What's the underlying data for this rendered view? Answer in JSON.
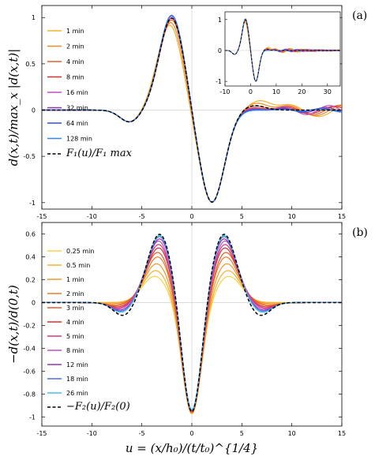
{
  "panel_labels": [
    "(a)",
    "(b)"
  ],
  "xlabel": "u = (x/h₀)/(t/t₀)^{1/4}",
  "chart_data": [
    {
      "type": "line",
      "panel": "(a)",
      "ylabel": "d(x,t)/max_x |d(x,t)|",
      "xlim": [
        -15,
        15
      ],
      "ylim": [
        -1.07,
        1.13
      ],
      "xticks": [
        -15,
        -10,
        -5,
        0,
        5,
        10,
        15
      ],
      "yticks": [
        -1,
        -0.5,
        0,
        0.5,
        1
      ],
      "ytick_labels": [
        "-1",
        "-0.5",
        "0",
        "0.5",
        "1"
      ],
      "legend_position": "top-left",
      "series": [
        {
          "name": "1 min",
          "color": "#f5b031",
          "peak": [
            -2.2,
            0.92
          ],
          "trough": [
            2.0,
            -1.0
          ],
          "side_lobe": [
            6.9,
            0.11
          ],
          "wiggle": {
            "amp": 0.07,
            "period": 6.2
          }
        },
        {
          "name": "2 min",
          "color": "#ef8a26",
          "peak": [
            -2.1,
            0.95
          ],
          "trough": [
            2.0,
            -1.0
          ],
          "side_lobe": [
            6.6,
            0.08
          ],
          "wiggle": {
            "amp": 0.06,
            "period": 5.8
          }
        },
        {
          "name": "4 min",
          "color": "#e4602c",
          "peak": [
            -2.0,
            0.98
          ],
          "trough": [
            2.0,
            -1.0
          ],
          "side_lobe": [
            6.4,
            0.05
          ],
          "wiggle": {
            "amp": 0.05,
            "period": 5.4
          }
        },
        {
          "name": "8 min",
          "color": "#d8302e",
          "peak": [
            -2.0,
            1.0
          ],
          "trough": [
            2.0,
            -1.0
          ],
          "side_lobe": [
            6.3,
            0.03
          ],
          "wiggle": {
            "amp": 0.04,
            "period": 5.0
          }
        },
        {
          "name": "16 min",
          "color": "#c04fc2",
          "peak": [
            -2.0,
            1.02
          ],
          "trough": [
            2.0,
            -1.0
          ],
          "side_lobe": [
            6.2,
            0.02
          ],
          "wiggle": {
            "amp": 0.05,
            "period": 4.6
          }
        },
        {
          "name": "32 min",
          "color": "#8a38b5",
          "peak": [
            -2.0,
            1.03
          ],
          "trough": [
            2.0,
            -1.0
          ],
          "side_lobe": [
            6.2,
            0.01
          ],
          "wiggle": {
            "amp": 0.03,
            "period": 4.3
          }
        },
        {
          "name": "64 min",
          "color": "#3a4ad9",
          "peak": [
            -2.0,
            1.03
          ],
          "trough": [
            2.0,
            -1.0
          ],
          "side_lobe": [
            6.1,
            0.01
          ],
          "wiggle": {
            "amp": 0.02,
            "period": 4.0
          }
        },
        {
          "name": "128 min",
          "color": "#2f8de8",
          "peak": [
            -2.0,
            1.03
          ],
          "trough": [
            2.0,
            -1.0
          ],
          "side_lobe": [
            6.1,
            0.0
          ],
          "wiggle": {
            "amp": 0.01,
            "period": 3.8
          }
        },
        {
          "name": "F₁(u)/F₁ max",
          "color": "#000000",
          "dashed": true,
          "peak": [
            -2.0,
            1.0
          ],
          "trough": [
            2.0,
            -1.0
          ],
          "side_lobe": [
            6.2,
            0.05
          ],
          "wiggle": {
            "amp": 0.0,
            "period": 4.0
          }
        }
      ],
      "inset": {
        "xlim": [
          -10,
          35
        ],
        "ylim": [
          -1.15,
          1.25
        ],
        "xticks": [
          -10,
          0,
          10,
          20,
          30
        ],
        "yticks": [
          -1,
          0,
          1
        ],
        "ytick_labels": [
          "-1",
          "0",
          "1"
        ]
      }
    },
    {
      "type": "line",
      "panel": "(b)",
      "ylabel": "−d(x,t)/d(0,t)",
      "xlim": [
        -15,
        15
      ],
      "ylim": [
        -1.08,
        0.7
      ],
      "xticks": [
        -15,
        -10,
        -5,
        0,
        5,
        10,
        15
      ],
      "yticks": [
        -1,
        -0.8,
        -0.6,
        -0.4,
        -0.2,
        0,
        0.2,
        0.4,
        0.6
      ],
      "ytick_labels": [
        "-1",
        "-0.8",
        "-0.6",
        "-0.4",
        "-0.2",
        "0",
        "0.2",
        "0.4",
        "0.6"
      ],
      "legend_position": "left",
      "series": [
        {
          "name": "0.25 min",
          "color": "#f9d247",
          "peak": [
            3.7,
            0.23
          ],
          "trough": [
            0,
            -0.98
          ],
          "side_lobe": [
            8.5,
            0.0
          ]
        },
        {
          "name": "0.5 min",
          "color": "#f5b031",
          "peak": [
            3.6,
            0.28
          ],
          "trough": [
            0,
            -0.98
          ],
          "side_lobe": [
            8.2,
            0.0
          ]
        },
        {
          "name": "1 min",
          "color": "#f09a2a",
          "peak": [
            3.5,
            0.34
          ],
          "trough": [
            0,
            -0.98
          ],
          "side_lobe": [
            8.0,
            -0.01
          ]
        },
        {
          "name": "2 min",
          "color": "#ec7a26",
          "peak": [
            3.4,
            0.4
          ],
          "trough": [
            0,
            -0.98
          ],
          "side_lobe": [
            7.8,
            -0.02
          ]
        },
        {
          "name": "3 min",
          "color": "#e35a2b",
          "peak": [
            3.4,
            0.44
          ],
          "trough": [
            0,
            -0.98
          ],
          "side_lobe": [
            7.6,
            -0.03
          ]
        },
        {
          "name": "4 min",
          "color": "#d8302e",
          "peak": [
            3.3,
            0.48
          ],
          "trough": [
            0,
            -0.98
          ],
          "side_lobe": [
            7.4,
            -0.04
          ]
        },
        {
          "name": "5 min",
          "color": "#d63a7a",
          "peak": [
            3.3,
            0.51
          ],
          "trough": [
            0,
            -0.98
          ],
          "side_lobe": [
            7.3,
            -0.05
          ]
        },
        {
          "name": "8 min",
          "color": "#c04fc2",
          "peak": [
            3.3,
            0.54
          ],
          "trough": [
            0,
            -0.98
          ],
          "side_lobe": [
            7.2,
            -0.06
          ]
        },
        {
          "name": "12 min",
          "color": "#8a38b5",
          "peak": [
            3.2,
            0.56
          ],
          "trough": [
            0,
            -0.98
          ],
          "side_lobe": [
            7.1,
            -0.07
          ]
        },
        {
          "name": "18 min",
          "color": "#4f6fe0",
          "peak": [
            3.2,
            0.58
          ],
          "trough": [
            0,
            -0.98
          ],
          "side_lobe": [
            7.0,
            -0.08
          ]
        },
        {
          "name": "26 min",
          "color": "#48c2e8",
          "peak": [
            3.2,
            0.59
          ],
          "trough": [
            0,
            -0.98
          ],
          "side_lobe": [
            7.0,
            -0.09
          ]
        },
        {
          "name": "−F₂(u)/F₂(0)",
          "color": "#000000",
          "dashed": true,
          "peak": [
            3.2,
            0.6
          ],
          "trough": [
            0,
            -1.0
          ],
          "side_lobe": [
            6.8,
            -0.12
          ]
        }
      ]
    }
  ]
}
